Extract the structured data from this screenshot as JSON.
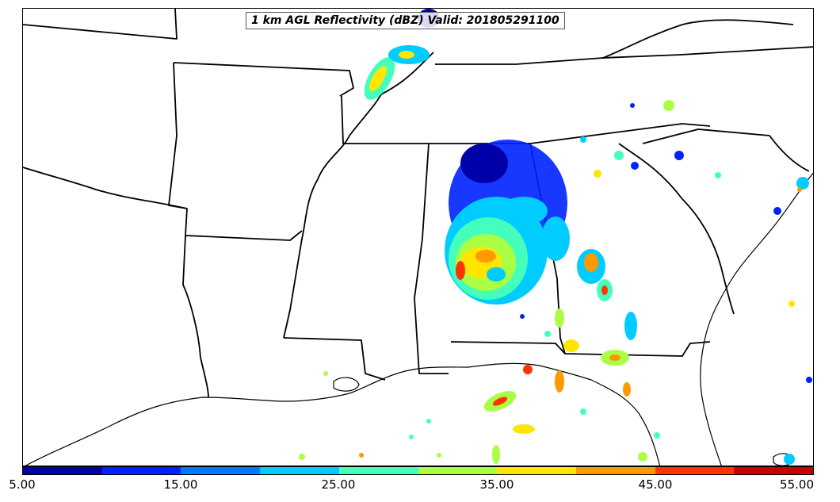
{
  "map": {
    "title": "1 km AGL Reflectivity (dBZ) Valid: 201805291100",
    "field": "1 km AGL Reflectivity",
    "units": "dBZ",
    "valid_time": "201805291100",
    "background_color": "#ffffff",
    "boundary_color": "#000000"
  },
  "colorbar": {
    "colors": [
      "#0000a8",
      "#0022ff",
      "#0077ff",
      "#00ccff",
      "#44ffbb",
      "#aaff44",
      "#ffe600",
      "#ff9900",
      "#ff3300",
      "#c80000"
    ],
    "labels": [
      "5.00",
      "15.00",
      "25.00",
      "35.00",
      "45.00",
      "55.00"
    ],
    "range": [
      5,
      55
    ],
    "interval": 5
  }
}
